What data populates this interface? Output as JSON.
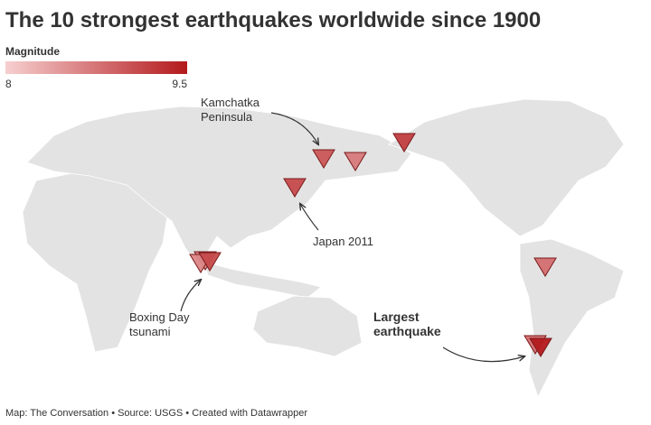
{
  "title": "The 10 strongest earthquakes worldwide since 1900",
  "legend": {
    "title": "Magnitude",
    "min": 8,
    "max": 9.5,
    "colors": [
      "#f7cfcf",
      "#b3191c"
    ]
  },
  "magnitudes": [
    9.5,
    9.2,
    9.1,
    9.1,
    9.0,
    8.8,
    8.8,
    8.7,
    8.6,
    8.6
  ],
  "annotations": {
    "kamchatka": [
      "Kamchatka",
      "Peninsula"
    ],
    "japan": [
      "Japan 2011"
    ],
    "boxing": [
      "Boxing Day",
      "tsunami"
    ],
    "largest": [
      "Largest",
      "earthquake"
    ]
  },
  "footer": "Map: The Conversation • Source: USGS • Created with Datawrapper"
}
